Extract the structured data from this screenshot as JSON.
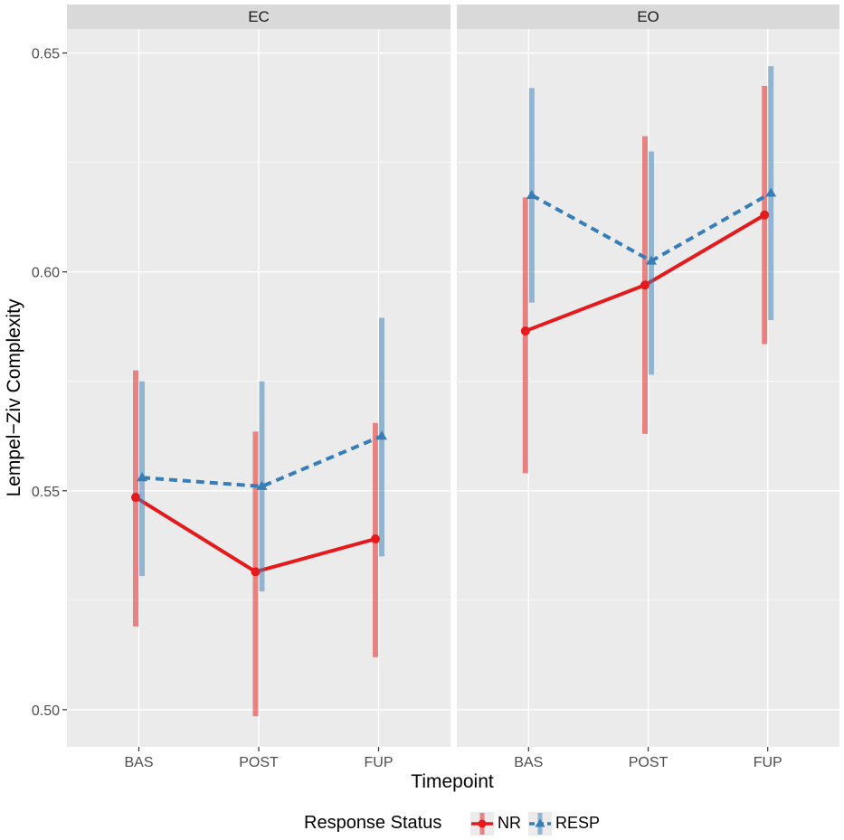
{
  "chart_data": {
    "type": "line",
    "xlabel": "Timepoint",
    "ylabel": "Lempel−Ziv Complexity",
    "categories": [
      "BAS",
      "POST",
      "FUP"
    ],
    "ylim": [
      0.4915,
      0.6555
    ],
    "yticks": [
      0.5,
      0.55,
      0.6,
      0.65
    ],
    "ytick_labels": [
      "0.50",
      "0.55",
      "0.60",
      "0.65"
    ],
    "grid": true,
    "legend": {
      "title": "Response Status",
      "position": "bottom"
    },
    "colors": {
      "NR": "#e41a1c",
      "RESP": "#377eb8"
    },
    "panels": [
      {
        "label": "EC",
        "series": [
          {
            "name": "NR",
            "values": [
              0.5485,
              0.5315,
              0.539
            ],
            "lower": [
              0.519,
              0.4985,
              0.512
            ],
            "upper": [
              0.5775,
              0.5635,
              0.5655
            ]
          },
          {
            "name": "RESP",
            "values": [
              0.553,
              0.551,
              0.5625
            ],
            "lower": [
              0.5305,
              0.527,
              0.535
            ],
            "upper": [
              0.575,
              0.575,
              0.5895
            ]
          }
        ]
      },
      {
        "label": "EO",
        "series": [
          {
            "name": "NR",
            "values": [
              0.5865,
              0.597,
              0.613
            ],
            "lower": [
              0.554,
              0.563,
              0.5835
            ],
            "upper": [
              0.617,
              0.631,
              0.6425
            ]
          },
          {
            "name": "RESP",
            "values": [
              0.6175,
              0.6025,
              0.618
            ],
            "lower": [
              0.593,
              0.5765,
              0.589
            ],
            "upper": [
              0.642,
              0.6275,
              0.647
            ]
          }
        ]
      }
    ]
  }
}
